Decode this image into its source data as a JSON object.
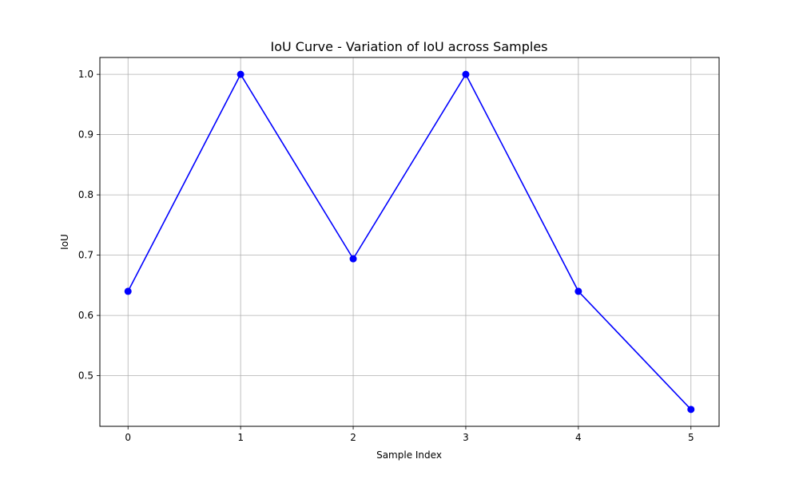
{
  "chart_data": {
    "type": "line",
    "title": "IoU Curve - Variation of IoU across Samples",
    "xlabel": "Sample Index",
    "ylabel": "IoU",
    "x": [
      0,
      1,
      2,
      3,
      4,
      5
    ],
    "series": [
      {
        "values": [
          0.64,
          1.0,
          0.694,
          1.0,
          0.64,
          0.444
        ],
        "color": "#0000ff",
        "marker": "circle"
      }
    ],
    "xticks": [
      0,
      1,
      2,
      3,
      4,
      5
    ],
    "xtick_labels": [
      "0",
      "1",
      "2",
      "3",
      "4",
      "5"
    ],
    "yticks": [
      0.5,
      0.6,
      0.7,
      0.8,
      0.9,
      1.0
    ],
    "ytick_labels": [
      "0.5",
      "0.6",
      "0.7",
      "0.8",
      "0.9",
      "1.0"
    ],
    "xlim": [
      -0.25,
      5.25
    ],
    "ylim": [
      0.416,
      1.028
    ],
    "grid": true,
    "grid_color": "#b0b0b0"
  }
}
